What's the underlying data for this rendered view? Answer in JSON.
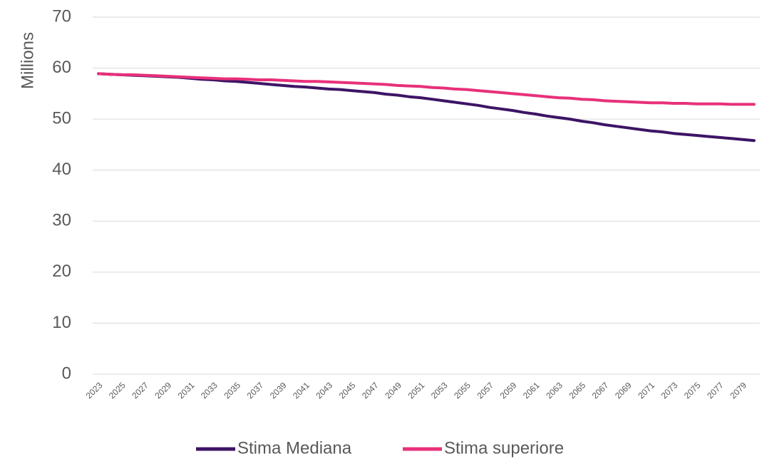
{
  "chart_data": {
    "type": "line",
    "ylabel": "Millions",
    "categories": [
      "2023",
      null,
      "2025",
      null,
      "2027",
      null,
      "2029",
      null,
      "2031",
      null,
      "2033",
      null,
      "2035",
      null,
      "2037",
      null,
      "2039",
      null,
      "2041",
      null,
      "2043",
      null,
      "2045",
      null,
      "2047",
      null,
      "2049",
      null,
      "2051",
      null,
      "2053",
      null,
      "2055",
      null,
      "2057",
      null,
      "2059",
      null,
      "2061",
      null,
      "2063",
      null,
      "2065",
      null,
      "2067",
      null,
      "2069",
      null,
      "2071",
      null,
      "2073",
      null,
      "2075",
      null,
      "2077",
      null,
      "2079",
      null
    ],
    "series": [
      {
        "name": "Stima Mediana",
        "color": "#3d1466",
        "values": [
          58.9,
          58.8,
          58.7,
          58.6,
          58.5,
          58.4,
          58.3,
          58.2,
          58.0,
          57.8,
          57.7,
          57.5,
          57.4,
          57.2,
          57.0,
          56.8,
          56.6,
          56.4,
          56.3,
          56.1,
          55.9,
          55.8,
          55.6,
          55.4,
          55.2,
          54.9,
          54.7,
          54.4,
          54.2,
          53.9,
          53.6,
          53.3,
          53.0,
          52.7,
          52.3,
          52.0,
          51.7,
          51.3,
          51.0,
          50.6,
          50.3,
          50.0,
          49.6,
          49.3,
          48.9,
          48.6,
          48.3,
          48.0,
          47.7,
          47.5,
          47.2,
          47.0,
          46.8,
          46.6,
          46.4,
          46.2,
          46.0,
          45.8
        ]
      },
      {
        "name": "Stima superiore",
        "color": "#e8307a",
        "values": [
          58.9,
          58.8,
          58.7,
          58.7,
          58.6,
          58.5,
          58.4,
          58.3,
          58.2,
          58.1,
          58.0,
          57.9,
          57.9,
          57.8,
          57.7,
          57.7,
          57.6,
          57.5,
          57.4,
          57.4,
          57.3,
          57.2,
          57.1,
          57.0,
          56.9,
          56.8,
          56.6,
          56.5,
          56.4,
          56.2,
          56.1,
          55.9,
          55.8,
          55.6,
          55.4,
          55.2,
          55.0,
          54.8,
          54.6,
          54.4,
          54.2,
          54.1,
          53.9,
          53.8,
          53.6,
          53.5,
          53.4,
          53.3,
          53.2,
          53.2,
          53.1,
          53.1,
          53.0,
          53.0,
          53.0,
          52.9,
          52.9,
          52.9
        ]
      }
    ],
    "ylim": [
      0,
      70
    ],
    "yticks": [
      0,
      10,
      20,
      30,
      40,
      50,
      60,
      70
    ],
    "grid": true,
    "legend": "bottom"
  }
}
